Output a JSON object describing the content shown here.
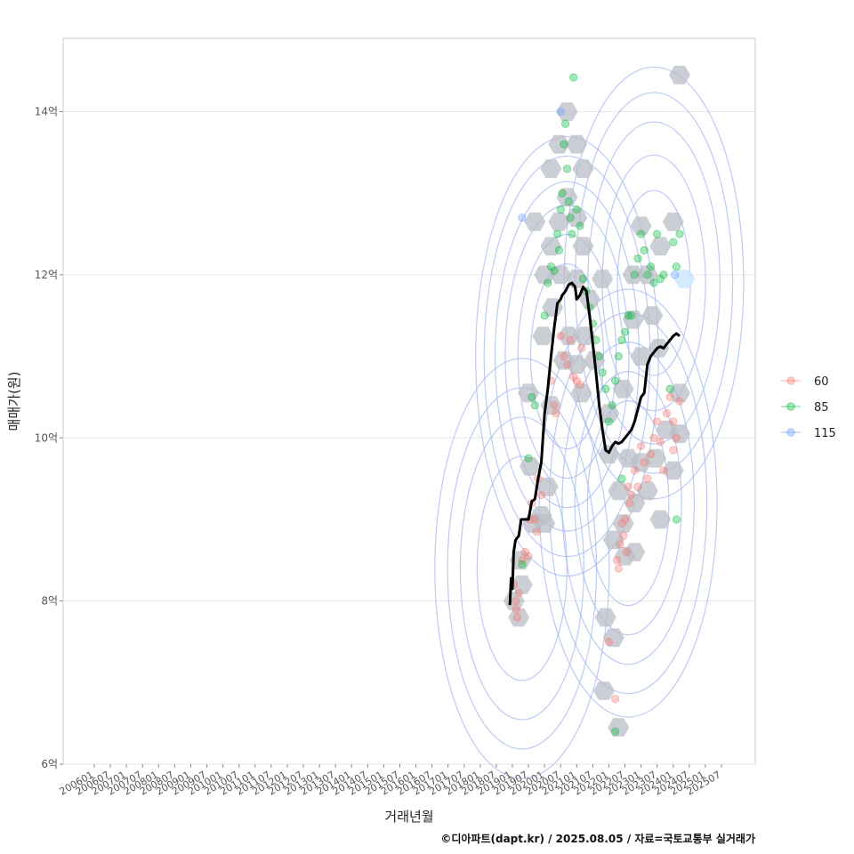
{
  "chart_data": {
    "type": "scatter",
    "xlabel": "거래년월",
    "ylabel": "매매가(원)",
    "caption": "©디아파트(dapt.kr) / 2025.08.05 / 자료=국토교통부 실거래가",
    "ylim": [
      6,
      14.9
    ],
    "y_ticks": [
      {
        "value": 6,
        "label": "6억"
      },
      {
        "value": 8,
        "label": "8억"
      },
      {
        "value": 10,
        "label": "10억"
      },
      {
        "value": 12,
        "label": "12억"
      },
      {
        "value": 14,
        "label": "14억"
      }
    ],
    "x_ticks": [
      "200601",
      "200607",
      "200701",
      "200707",
      "200801",
      "200807",
      "200901",
      "200907",
      "201001",
      "201007",
      "201101",
      "201107",
      "201201",
      "201207",
      "201301",
      "201307",
      "201401",
      "201407",
      "201501",
      "201507",
      "201601",
      "201607",
      "201701",
      "201707",
      "201801",
      "201807",
      "201901",
      "201907",
      "202001",
      "202007",
      "202101",
      "202107",
      "202201",
      "202207",
      "202301",
      "202307",
      "202401",
      "202407",
      "202501",
      "202507"
    ],
    "legend": [
      {
        "name": "60",
        "color": "#f8766d"
      },
      {
        "name": "85",
        "color": "#00ba38"
      },
      {
        "name": "115",
        "color": "#619cff"
      }
    ],
    "trend_line": [
      [
        2018.92,
        7.95
      ],
      [
        2018.96,
        8.28
      ],
      [
        2019.0,
        8.15
      ],
      [
        2019.04,
        8.6
      ],
      [
        2019.1,
        8.75
      ],
      [
        2019.2,
        8.8
      ],
      [
        2019.27,
        9.0
      ],
      [
        2019.5,
        9.0
      ],
      [
        2019.6,
        9.22
      ],
      [
        2019.7,
        9.25
      ],
      [
        2019.8,
        9.5
      ],
      [
        2019.9,
        9.7
      ],
      [
        2020.0,
        10.3
      ],
      [
        2020.1,
        10.6
      ],
      [
        2020.2,
        11.0
      ],
      [
        2020.3,
        11.35
      ],
      [
        2020.4,
        11.65
      ],
      [
        2020.5,
        11.7
      ],
      [
        2020.55,
        11.75
      ],
      [
        2020.65,
        11.8
      ],
      [
        2020.75,
        11.88
      ],
      [
        2020.85,
        11.9
      ],
      [
        2020.95,
        11.85
      ],
      [
        2021.0,
        11.7
      ],
      [
        2021.1,
        11.75
      ],
      [
        2021.2,
        11.85
      ],
      [
        2021.3,
        11.8
      ],
      [
        2021.4,
        11.5
      ],
      [
        2021.5,
        11.15
      ],
      [
        2021.6,
        10.8
      ],
      [
        2021.7,
        10.4
      ],
      [
        2021.8,
        10.1
      ],
      [
        2021.9,
        9.85
      ],
      [
        2022.0,
        9.82
      ],
      [
        2022.1,
        9.9
      ],
      [
        2022.2,
        9.95
      ],
      [
        2022.3,
        9.93
      ],
      [
        2022.4,
        9.95
      ],
      [
        2022.5,
        10.0
      ],
      [
        2022.6,
        10.05
      ],
      [
        2022.7,
        10.1
      ],
      [
        2022.8,
        10.2
      ],
      [
        2022.9,
        10.35
      ],
      [
        2023.0,
        10.5
      ],
      [
        2023.1,
        10.55
      ],
      [
        2023.2,
        10.9
      ],
      [
        2023.3,
        11.0
      ],
      [
        2023.4,
        11.05
      ],
      [
        2023.5,
        11.1
      ],
      [
        2023.6,
        11.12
      ],
      [
        2023.7,
        11.1
      ],
      [
        2023.8,
        11.15
      ],
      [
        2023.9,
        11.2
      ],
      [
        2024.0,
        11.25
      ],
      [
        2024.1,
        11.28
      ],
      [
        2024.2,
        11.25
      ]
    ],
    "series": [
      {
        "name": "60",
        "points": [
          [
            2019.05,
            8.2
          ],
          [
            2019.1,
            8.0
          ],
          [
            2019.12,
            7.9
          ],
          [
            2019.15,
            7.8
          ],
          [
            2019.2,
            8.1
          ],
          [
            2019.3,
            8.5
          ],
          [
            2019.4,
            8.6
          ],
          [
            2019.5,
            8.55
          ],
          [
            2019.55,
            9.0
          ],
          [
            2019.6,
            9.2
          ],
          [
            2019.7,
            9.0
          ],
          [
            2019.75,
            8.85
          ],
          [
            2019.8,
            9.5
          ],
          [
            2019.9,
            9.3
          ],
          [
            2020.2,
            10.7
          ],
          [
            2020.3,
            10.4
          ],
          [
            2020.35,
            10.3
          ],
          [
            2020.5,
            11.25
          ],
          [
            2020.6,
            11.0
          ],
          [
            2020.7,
            10.9
          ],
          [
            2020.8,
            11.2
          ],
          [
            2020.9,
            10.75
          ],
          [
            2021.0,
            10.7
          ],
          [
            2021.1,
            10.65
          ],
          [
            2021.15,
            11.1
          ],
          [
            2022.0,
            7.5
          ],
          [
            2022.2,
            6.8
          ],
          [
            2022.25,
            8.5
          ],
          [
            2022.3,
            8.4
          ],
          [
            2022.35,
            8.7
          ],
          [
            2022.4,
            8.95
          ],
          [
            2022.5,
            9.0
          ],
          [
            2022.55,
            8.6
          ],
          [
            2022.6,
            9.4
          ],
          [
            2022.7,
            9.3
          ],
          [
            2022.8,
            9.6
          ],
          [
            2022.9,
            9.4
          ],
          [
            2023.0,
            9.9
          ],
          [
            2023.1,
            9.7
          ],
          [
            2023.2,
            9.5
          ],
          [
            2023.3,
            9.8
          ],
          [
            2023.4,
            10.0
          ],
          [
            2023.5,
            10.2
          ],
          [
            2023.6,
            9.95
          ],
          [
            2023.8,
            10.3
          ],
          [
            2023.9,
            10.5
          ],
          [
            2024.0,
            10.2
          ],
          [
            2024.1,
            10.0
          ],
          [
            2024.2,
            10.45
          ],
          [
            2024.0,
            9.85
          ],
          [
            2023.7,
            9.6
          ],
          [
            2022.45,
            8.8
          ],
          [
            2022.65,
            9.2
          ]
        ]
      },
      {
        "name": "85",
        "points": [
          [
            2019.3,
            8.45
          ],
          [
            2019.5,
            9.75
          ],
          [
            2019.6,
            10.5
          ],
          [
            2019.7,
            10.4
          ],
          [
            2020.0,
            11.5
          ],
          [
            2020.1,
            11.9
          ],
          [
            2020.2,
            12.1
          ],
          [
            2020.3,
            12.05
          ],
          [
            2020.4,
            12.5
          ],
          [
            2020.5,
            12.8
          ],
          [
            2020.55,
            13.0
          ],
          [
            2020.6,
            13.6
          ],
          [
            2020.65,
            13.85
          ],
          [
            2020.7,
            13.3
          ],
          [
            2020.75,
            12.9
          ],
          [
            2020.8,
            12.7
          ],
          [
            2020.85,
            12.5
          ],
          [
            2020.9,
            14.42
          ],
          [
            2021.0,
            12.8
          ],
          [
            2021.1,
            12.6
          ],
          [
            2021.2,
            11.95
          ],
          [
            2021.3,
            11.8
          ],
          [
            2021.4,
            11.6
          ],
          [
            2021.5,
            11.4
          ],
          [
            2021.6,
            11.2
          ],
          [
            2021.7,
            11.0
          ],
          [
            2021.8,
            10.8
          ],
          [
            2021.9,
            10.6
          ],
          [
            2022.0,
            10.2
          ],
          [
            2022.1,
            10.4
          ],
          [
            2022.2,
            10.7
          ],
          [
            2022.3,
            11.0
          ],
          [
            2022.4,
            11.2
          ],
          [
            2022.5,
            11.3
          ],
          [
            2022.6,
            11.5
          ],
          [
            2022.7,
            11.5
          ],
          [
            2022.8,
            12.0
          ],
          [
            2022.9,
            12.2
          ],
          [
            2023.0,
            12.5
          ],
          [
            2023.1,
            12.3
          ],
          [
            2023.2,
            12.0
          ],
          [
            2023.3,
            12.1
          ],
          [
            2023.4,
            11.9
          ],
          [
            2023.5,
            12.5
          ],
          [
            2023.6,
            11.95
          ],
          [
            2023.7,
            12.0
          ],
          [
            2024.0,
            12.4
          ],
          [
            2024.1,
            12.1
          ],
          [
            2024.2,
            12.5
          ],
          [
            2022.2,
            6.4
          ],
          [
            2022.4,
            9.5
          ],
          [
            2023.9,
            10.6
          ],
          [
            2024.1,
            9.0
          ],
          [
            2020.45,
            12.3
          ]
        ]
      },
      {
        "name": "115",
        "points": [
          [
            2019.3,
            12.7
          ],
          [
            2020.5,
            14.0
          ],
          [
            2024.05,
            12.0
          ]
        ]
      }
    ],
    "hexbins": [
      [
        2024.2,
        14.45
      ],
      [
        2020.7,
        14.0
      ],
      [
        2020.45,
        13.6
      ],
      [
        2021.0,
        13.6
      ],
      [
        2020.2,
        13.3
      ],
      [
        2021.2,
        13.3
      ],
      [
        2020.7,
        12.95
      ],
      [
        2020.45,
        12.65
      ],
      [
        2021.0,
        12.7
      ],
      [
        2019.7,
        12.65
      ],
      [
        2020.2,
        12.35
      ],
      [
        2021.2,
        12.35
      ],
      [
        2020.0,
        12.0
      ],
      [
        2020.5,
        12.0
      ],
      [
        2021.0,
        11.95
      ],
      [
        2021.4,
        11.7
      ],
      [
        2021.8,
        11.95
      ],
      [
        2020.25,
        11.6
      ],
      [
        2019.95,
        11.25
      ],
      [
        2020.75,
        11.25
      ],
      [
        2021.25,
        11.25
      ],
      [
        2021.55,
        10.95
      ],
      [
        2021.0,
        10.9
      ],
      [
        2020.6,
        10.95
      ],
      [
        2019.5,
        10.55
      ],
      [
        2020.2,
        10.4
      ],
      [
        2021.15,
        10.55
      ],
      [
        2022.0,
        10.3
      ],
      [
        2022.45,
        10.6
      ],
      [
        2022.75,
        11.45
      ],
      [
        2023.0,
        11.0
      ],
      [
        2023.35,
        11.5
      ],
      [
        2023.2,
        12.0
      ],
      [
        2022.75,
        12.0
      ],
      [
        2023.0,
        12.6
      ],
      [
        2023.6,
        12.35
      ],
      [
        2024.0,
        12.65
      ],
      [
        2024.2,
        10.55
      ],
      [
        2023.8,
        10.1
      ],
      [
        2023.45,
        9.75
      ],
      [
        2023.0,
        9.7
      ],
      [
        2022.6,
        9.75
      ],
      [
        2022.3,
        9.35
      ],
      [
        2022.0,
        9.8
      ],
      [
        2022.8,
        9.2
      ],
      [
        2023.2,
        9.35
      ],
      [
        2024.0,
        9.6
      ],
      [
        2023.6,
        9.0
      ],
      [
        2022.45,
        8.95
      ],
      [
        2022.15,
        8.75
      ],
      [
        2022.5,
        8.55
      ],
      [
        2022.8,
        8.6
      ],
      [
        2019.55,
        9.65
      ],
      [
        2020.1,
        9.4
      ],
      [
        2019.9,
        9.05
      ],
      [
        2020.0,
        8.95
      ],
      [
        2019.65,
        8.95
      ],
      [
        2019.25,
        8.5
      ],
      [
        2019.3,
        8.2
      ],
      [
        2019.05,
        8.0
      ],
      [
        2019.2,
        7.8
      ],
      [
        2021.9,
        7.8
      ],
      [
        2022.15,
        7.55
      ],
      [
        2021.85,
        6.9
      ],
      [
        2022.3,
        6.45
      ],
      [
        2024.2,
        10.05
      ],
      [
        2023.55,
        11.1
      ]
    ],
    "kde_centers": [
      {
        "cx": 2020.7,
        "cy": 11.0,
        "levels": [
          0.8,
          0.65,
          0.5,
          0.38,
          0.25,
          0.15
        ]
      },
      {
        "cx": 2019.3,
        "cy": 8.4,
        "levels": [
          0.7,
          0.5,
          0.35,
          0.2
        ]
      },
      {
        "cx": 2022.6,
        "cy": 9.2,
        "levels": [
          0.75,
          0.6,
          0.45,
          0.3,
          0.18
        ]
      },
      {
        "cx": 2023.4,
        "cy": 11.9,
        "levels": [
          0.8,
          0.62,
          0.45,
          0.3,
          0.17
        ]
      }
    ],
    "highlight_hex": [
      2024.35,
      11.95
    ]
  }
}
